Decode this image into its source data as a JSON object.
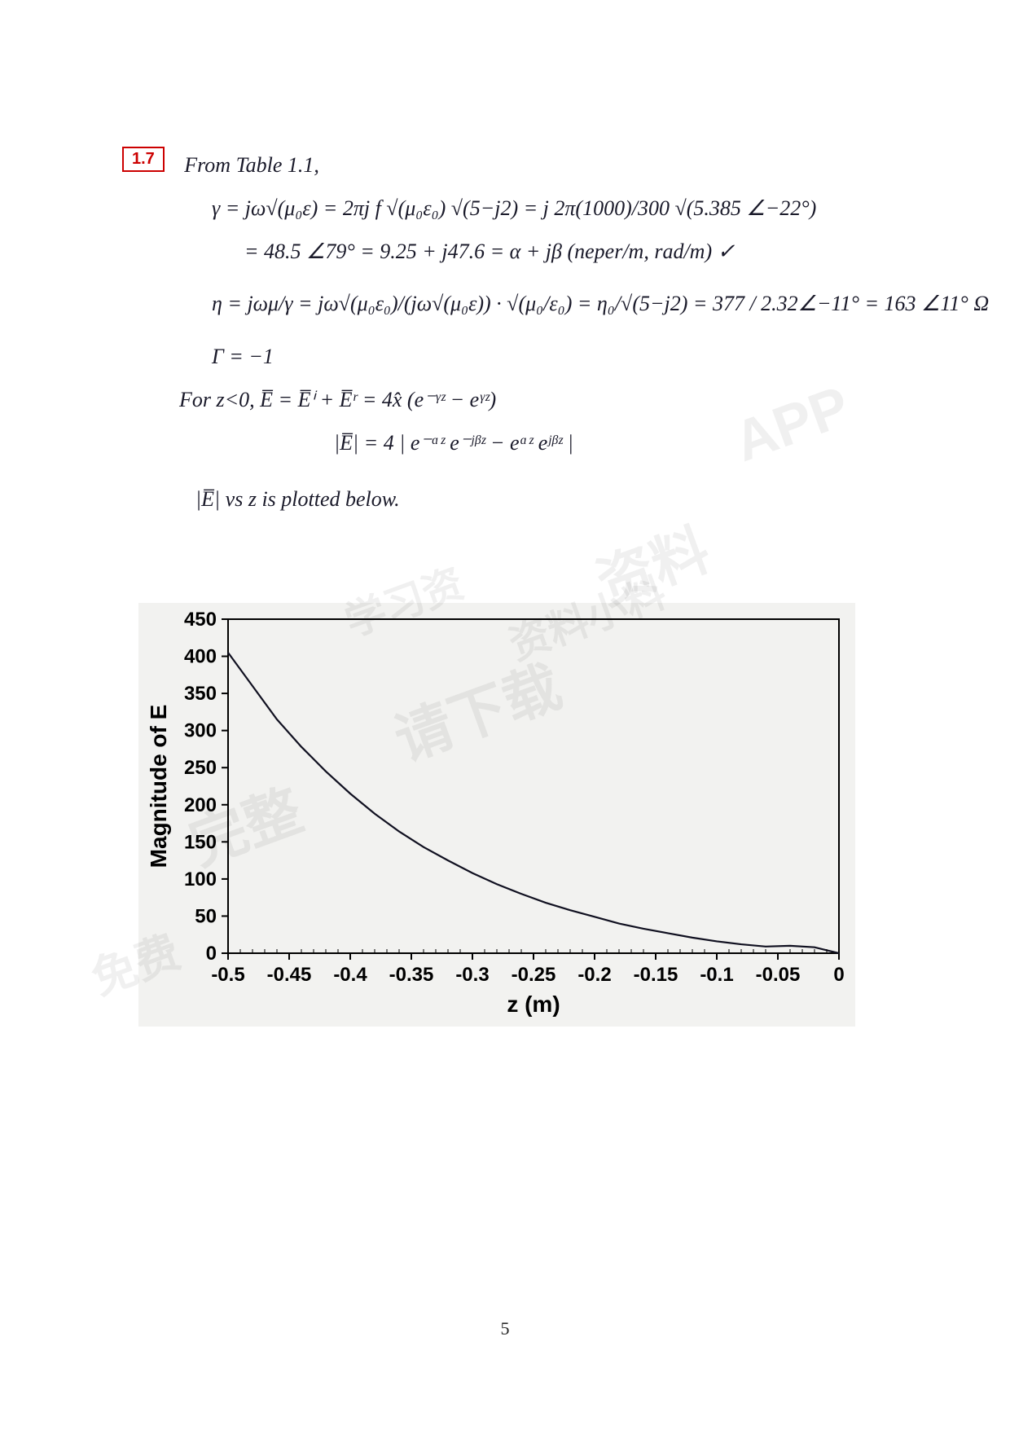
{
  "problem_label": "1.7",
  "lines": {
    "l1": "From Table 1.1,",
    "l2": "γ = jω√(μ₀ε) = 2πj f √(μ₀ε₀) √(5−j2) = j 2π(1000)/300 √(5.385 ∠−22°)",
    "l3": "= 48.5 ∠79° = 9.25 + j47.6 = α + jβ   (neper/m, rad/m) ✓",
    "l4": "η = jωμ/γ = jω√(μ₀ε₀)/(jω√(μ₀ε)) · √(μ₀/ε₀) = η₀/√(5−j2) = 377 / 2.32∠−11° = 163 ∠11°  Ω",
    "l5": "Γ = −1",
    "l6": "For z<0,   E̅ = E̅ⁱ + E̅ʳ = 4x̂ (e⁻ᵞᶻ − eᵞᶻ)",
    "l7": "|E̅| = 4 | e⁻ᵅᶻ e⁻ʲᵝᶻ − eᵅᶻ eʲᵝᶻ |",
    "l8": "|E̅| vs z is plotted below."
  },
  "chart": {
    "type": "line",
    "x_label": "z (m)",
    "y_label": "Magnitude of E",
    "xlim": [
      -0.5,
      0
    ],
    "ylim": [
      0,
      450
    ],
    "x_ticks": [
      -0.5,
      -0.45,
      -0.4,
      -0.35,
      -0.3,
      -0.25,
      -0.2,
      -0.15,
      -0.1,
      -0.05,
      0
    ],
    "y_ticks": [
      0,
      50,
      100,
      150,
      200,
      250,
      300,
      350,
      400,
      450
    ],
    "series": {
      "x": [
        -0.5,
        -0.48,
        -0.46,
        -0.44,
        -0.42,
        -0.4,
        -0.38,
        -0.36,
        -0.34,
        -0.32,
        -0.3,
        -0.28,
        -0.26,
        -0.24,
        -0.22,
        -0.2,
        -0.18,
        -0.16,
        -0.14,
        -0.12,
        -0.1,
        -0.08,
        -0.06,
        -0.04,
        -0.02,
        0.0
      ],
      "y": [
        405,
        360,
        315,
        278,
        245,
        215,
        188,
        164,
        143,
        125,
        108,
        93,
        80,
        68,
        58,
        49,
        40,
        33,
        27,
        21,
        16,
        12,
        9,
        10,
        8,
        0
      ]
    },
    "line_color": "#101020",
    "line_width": 2.2,
    "axis_color": "#000000",
    "tick_color": "#000000",
    "tick_fontsize": 24,
    "label_fontsize": 28,
    "background": "#f2f2f0",
    "plot_background": "#f2f2f0"
  },
  "page_number": "5",
  "watermarks": [
    "APP",
    "资料",
    "请下载",
    "完整",
    "资料小料",
    "学习资",
    "免费"
  ]
}
